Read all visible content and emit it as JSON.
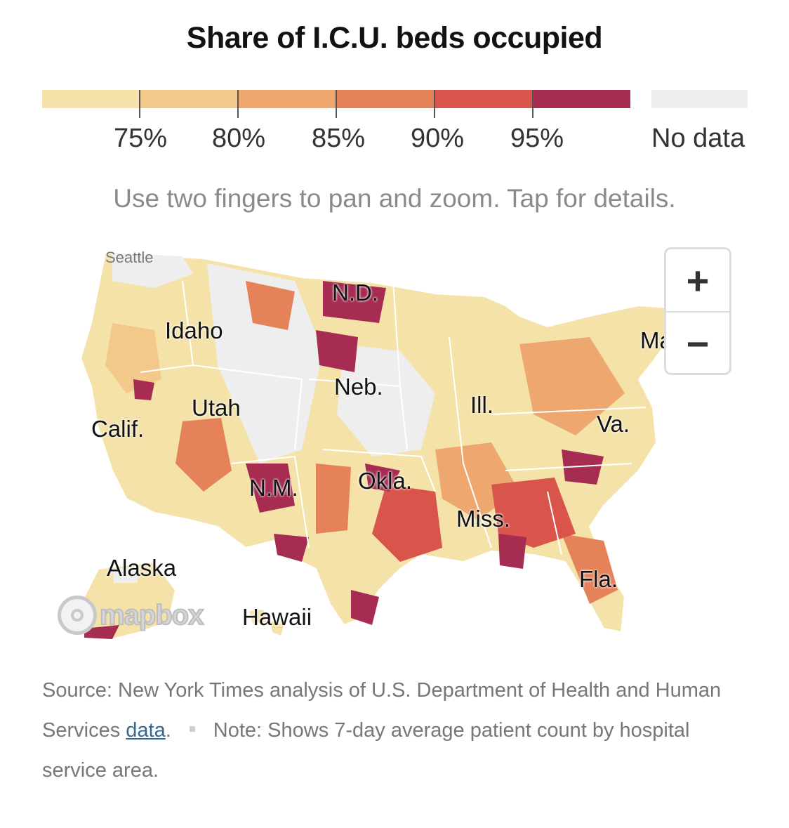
{
  "title": "Share of I.C.U. beds occupied",
  "legend": {
    "bins": [
      {
        "color": "#f4e2a9"
      },
      {
        "color": "#f2c98a"
      },
      {
        "color": "#eea86f"
      },
      {
        "color": "#e5825a"
      },
      {
        "color": "#d9544b"
      },
      {
        "color": "#a62c52"
      }
    ],
    "ticks": [
      "75%",
      "80%",
      "85%",
      "90%",
      "95%"
    ],
    "no_data_color": "#eeeeee",
    "no_data_label": "No data"
  },
  "instructions": "Use two fingers to pan and zoom. Tap for details.",
  "map": {
    "state_labels": [
      "N.D.",
      "Idaho",
      "Neb.",
      "Utah",
      "Ill.",
      "Calif.",
      "Va.",
      "N.M.",
      "Okla.",
      "Miss.",
      "Alaska",
      "Fla.",
      "Hawaii",
      "Ma"
    ],
    "city_labels": [
      "Seattle"
    ],
    "zoom_in": "+",
    "zoom_out": "−",
    "attribution": "mapbox"
  },
  "source": {
    "prefix": "Source: New York Times analysis of U.S. Department of Health and Human Services ",
    "link_text": "data",
    "suffix": ".",
    "note": "Note: Shows 7-day average patient count by hospital service area."
  }
}
